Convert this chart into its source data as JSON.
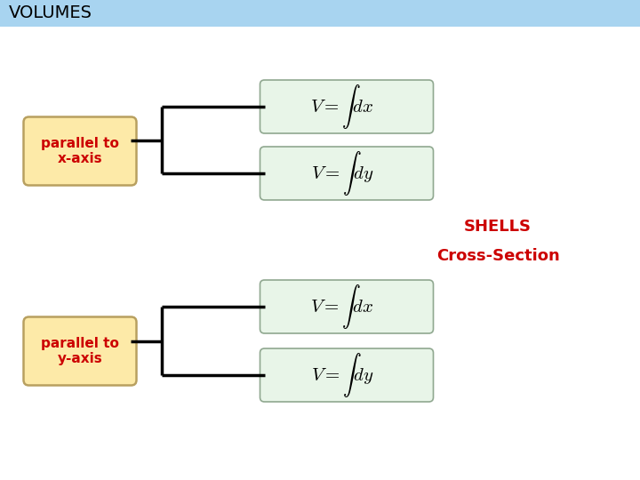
{
  "title": "VOLUMES",
  "title_bg_color": "#a8d4f0",
  "title_text_color": "#000000",
  "title_fontsize": 14,
  "bg_color": "#ffffff",
  "left_box1_text": "parallel to\nx-axis",
  "left_box2_text": "parallel to\ny-axis",
  "left_box_fill": "#fdeaa8",
  "left_box_edge": "#b8a060",
  "right_box_fill": "#e8f5e8",
  "right_box_edge": "#90a890",
  "formula_color": "#000000",
  "label_color": "#cc0000",
  "shells_text": "SHELLS",
  "cross_text": "Cross-Section",
  "annotation_color": "#cc0000",
  "formulas_top": [
    "$V = \\int dx$",
    "$V = \\int dy$"
  ],
  "formulas_bot": [
    "$V = \\int dx$",
    "$V = \\int dy$"
  ],
  "line_color": "#000000",
  "title_bar_height": 30,
  "fig_w": 720,
  "fig_h": 540
}
